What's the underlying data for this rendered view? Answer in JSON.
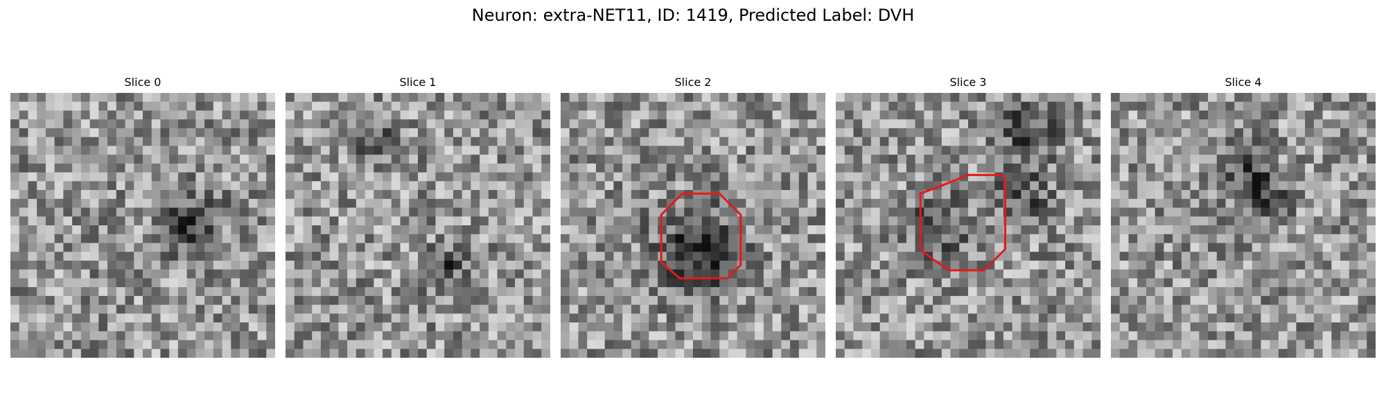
{
  "figure": {
    "title": "Neuron: extra-NET11, ID: 1419, Predicted Label: DVH"
  },
  "slices": [
    {
      "label": "Slice 0",
      "has_roi": false,
      "dark_blobs": [
        [
          0.7,
          0.48,
          0.1
        ],
        [
          0.62,
          0.52,
          0.08
        ]
      ]
    },
    {
      "label": "Slice 1",
      "has_roi": false,
      "dark_blobs": [
        [
          0.35,
          0.2,
          0.07
        ],
        [
          0.6,
          0.65,
          0.08
        ]
      ]
    },
    {
      "label": "Slice 2",
      "has_roi": true,
      "dark_blobs": [
        [
          0.52,
          0.55,
          0.16
        ],
        [
          0.52,
          0.65,
          0.12
        ]
      ]
    },
    {
      "label": "Slice 3",
      "has_roi": true,
      "dark_blobs": [
        [
          0.72,
          0.15,
          0.12
        ],
        [
          0.7,
          0.4,
          0.1
        ],
        [
          0.38,
          0.5,
          0.12
        ]
      ]
    },
    {
      "label": "Slice 4",
      "has_roi": false,
      "dark_blobs": [
        [
          0.5,
          0.3,
          0.1
        ],
        [
          0.6,
          0.38,
          0.08
        ]
      ]
    }
  ],
  "roi": {
    "color": "#e31a1c"
  },
  "colors": {
    "background": "#ffffff",
    "text": "#000000"
  }
}
